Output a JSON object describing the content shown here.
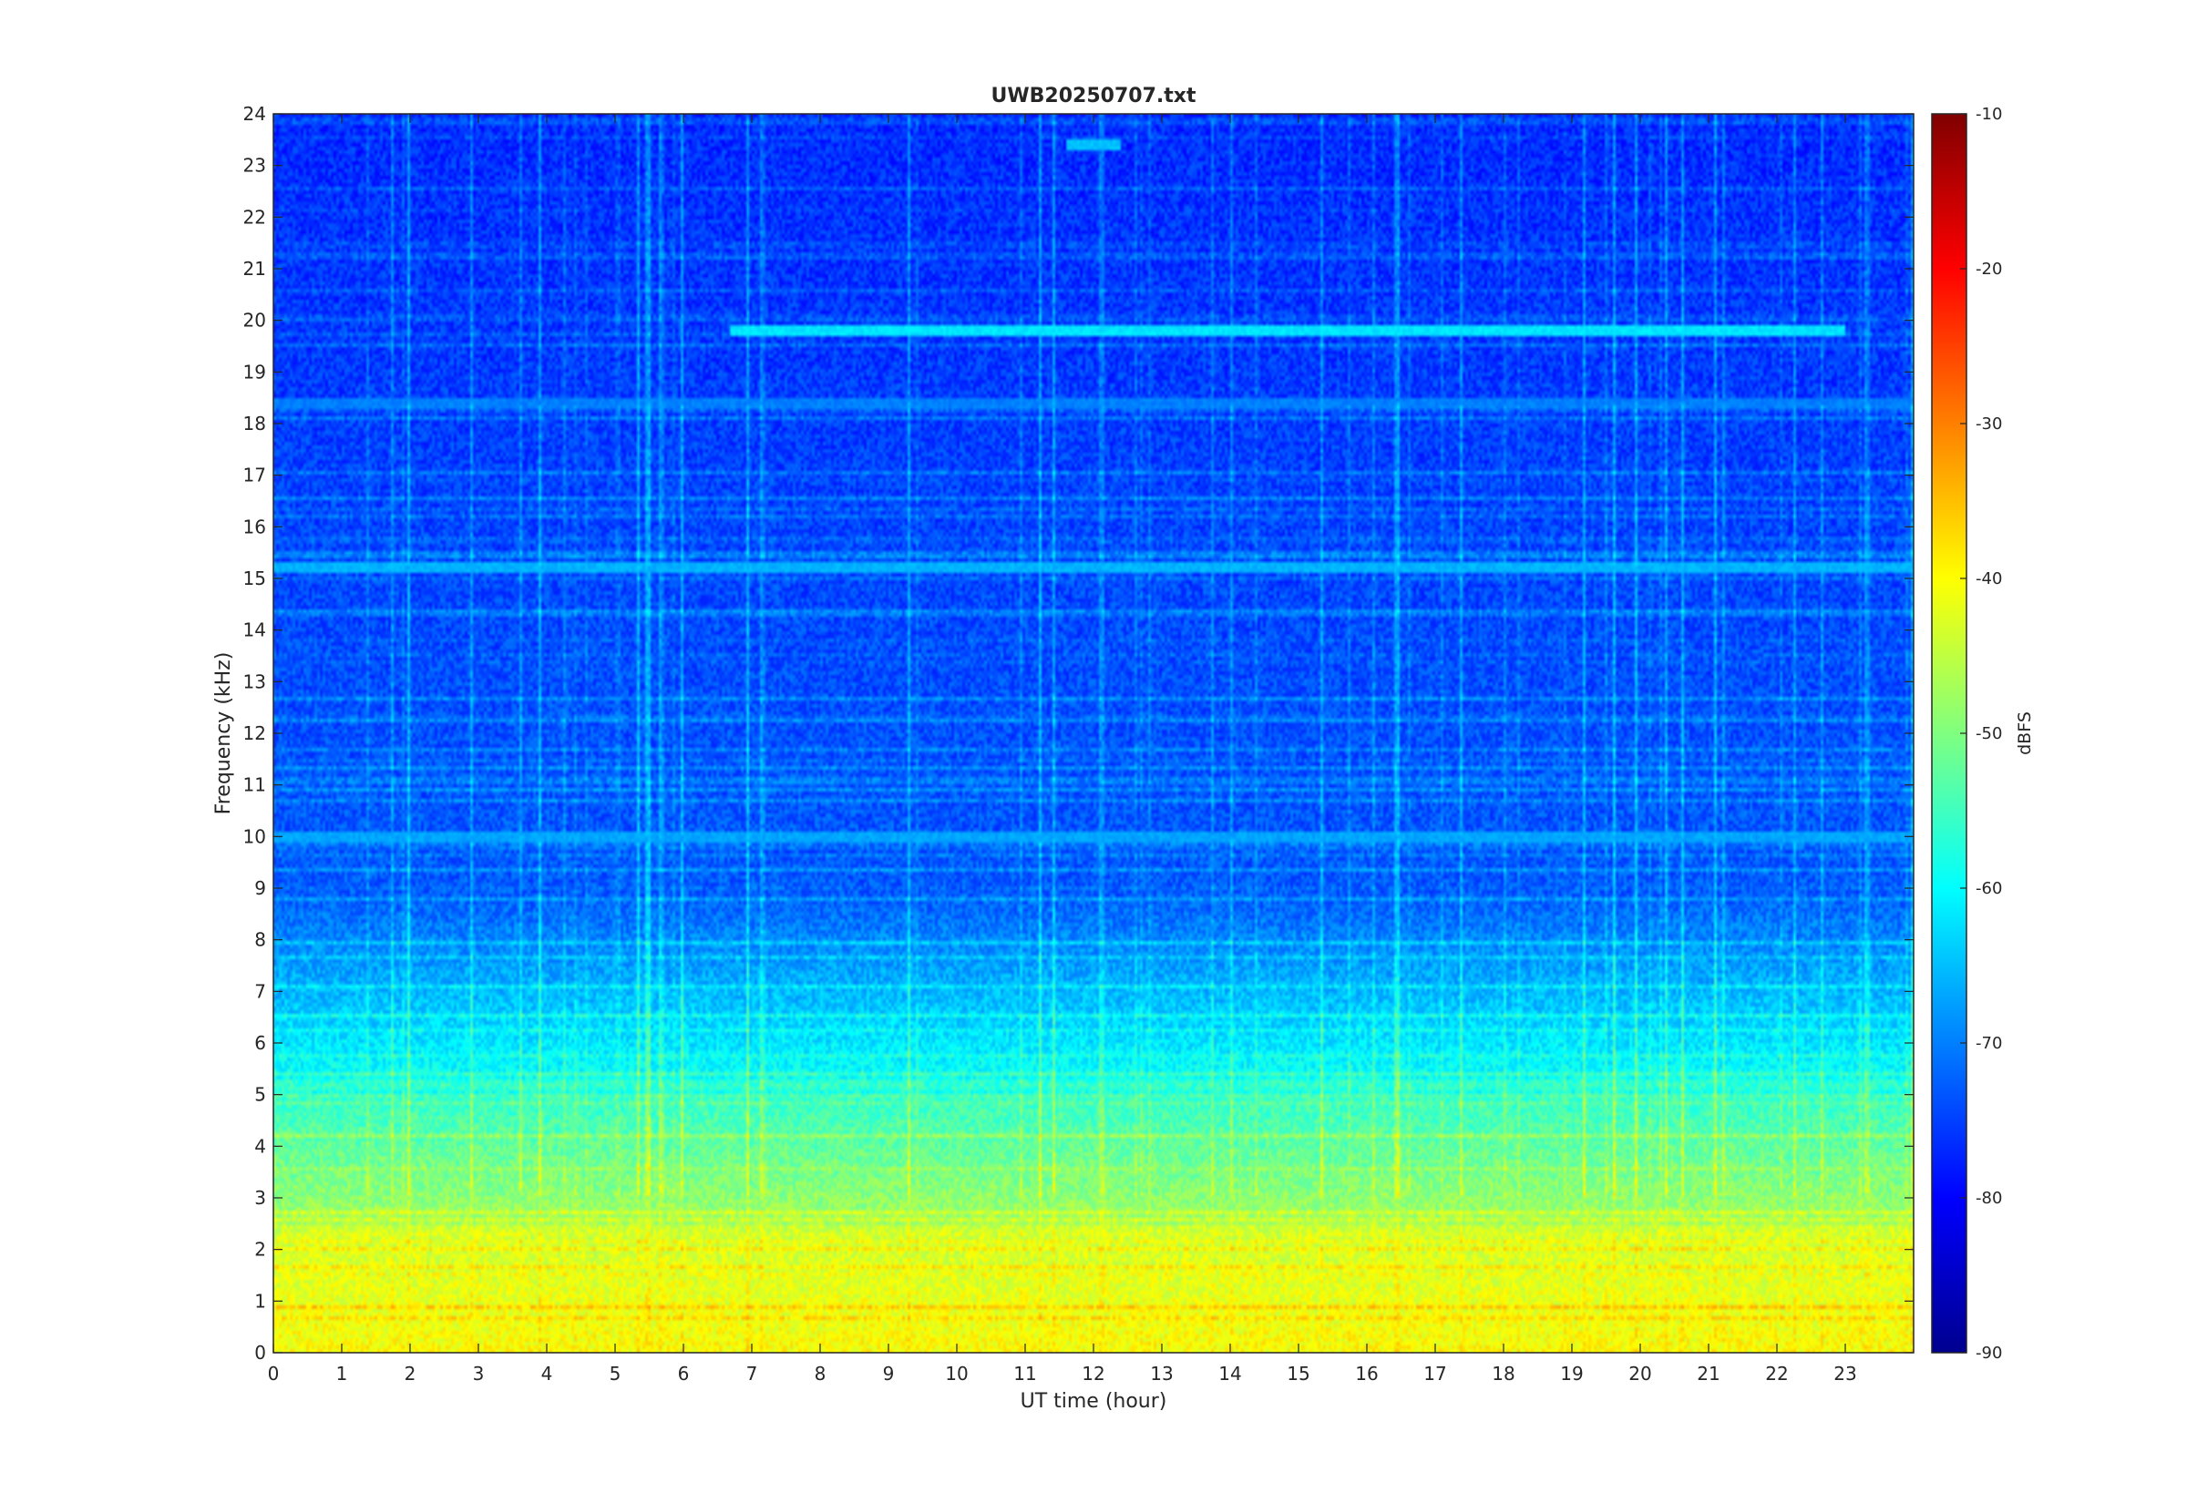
{
  "chart_data": {
    "type": "heatmap",
    "title": "UWB20250707.txt",
    "xlabel": "UT time (hour)",
    "ylabel": "Frequency (kHz)",
    "xlim": [
      0,
      24
    ],
    "ylim": [
      0,
      24
    ],
    "x_ticks": [
      "0",
      "1",
      "2",
      "3",
      "4",
      "5",
      "6",
      "7",
      "8",
      "9",
      "10",
      "11",
      "12",
      "13",
      "14",
      "15",
      "16",
      "17",
      "18",
      "19",
      "20",
      "21",
      "22",
      "23"
    ],
    "y_ticks": [
      "0",
      "1",
      "2",
      "3",
      "4",
      "5",
      "6",
      "7",
      "8",
      "9",
      "10",
      "11",
      "12",
      "13",
      "14",
      "15",
      "16",
      "17",
      "18",
      "19",
      "20",
      "21",
      "22",
      "23",
      "24"
    ],
    "colorbar": {
      "label": "dBFS",
      "range": [
        -90,
        -10
      ],
      "ticks": [
        "-10",
        "-20",
        "-30",
        "-40",
        "-50",
        "-60",
        "-70",
        "-80",
        "-90"
      ],
      "colormap": "jet"
    },
    "features": [
      {
        "band_khz": [
          0,
          2.5
        ],
        "level_dbfs": -42
      },
      {
        "band_khz": [
          2.5,
          5
        ],
        "level_dbfs": -55
      },
      {
        "band_khz": [
          5,
          8
        ],
        "level_dbfs": -64
      },
      {
        "band_khz": [
          8,
          24
        ],
        "level_dbfs": -76
      },
      {
        "tone_khz": 19.8,
        "time_hours": [
          6.7,
          23.0
        ],
        "level_dbfs": -62
      },
      {
        "tone_khz": 18.4,
        "time_hours": [
          0,
          24
        ],
        "level_dbfs": -70
      },
      {
        "tone_khz": 15.2,
        "time_hours": [
          0,
          24
        ],
        "level_dbfs": -66
      },
      {
        "tone_khz": 10.0,
        "time_hours": [
          0,
          24
        ],
        "level_dbfs": -67
      },
      {
        "tone_khz": 23.4,
        "time_hours": [
          11.6,
          12.4
        ],
        "level_dbfs": -65
      }
    ]
  }
}
